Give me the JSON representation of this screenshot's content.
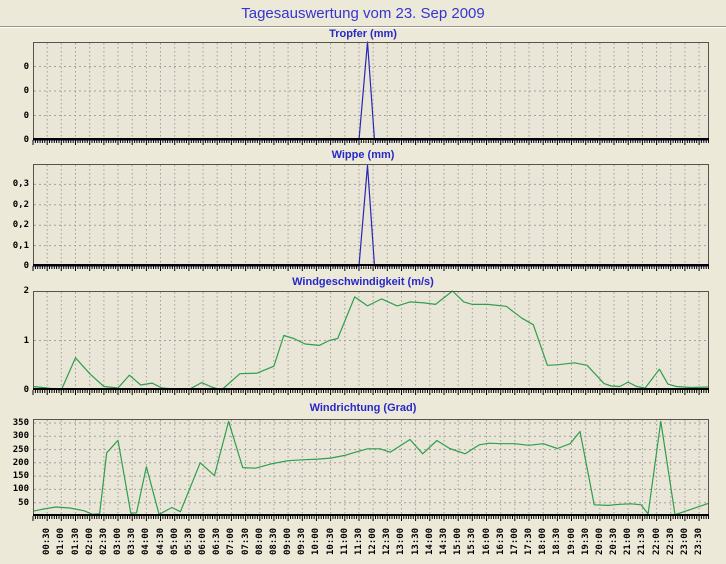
{
  "page": {
    "title": "Tagesauswertung vom 23. Sep 2009",
    "background": "#ece9d8",
    "plot_background": "#e9e6d7",
    "grid_color": "#a0a0a0",
    "axis_color": "#000000",
    "border_color": "#55534a",
    "title_color": "#3535cf",
    "chart_title_color": "#2828c8",
    "tick_label_color": "#000000"
  },
  "x_axis": {
    "domain_hours": [
      0,
      23.85
    ],
    "tick_start": 0.5,
    "tick_step": 0.5,
    "minor_tick_minutes": 5,
    "labels": [
      "00:30",
      "01:00",
      "01:30",
      "02:00",
      "02:30",
      "03:00",
      "03:30",
      "04:00",
      "04:30",
      "05:00",
      "05:30",
      "06:00",
      "06:30",
      "07:00",
      "07:30",
      "08:00",
      "08:30",
      "09:00",
      "09:30",
      "10:00",
      "10:30",
      "11:00",
      "11:30",
      "12:00",
      "12:30",
      "13:00",
      "13:30",
      "14:00",
      "14:30",
      "15:00",
      "15:30",
      "16:00",
      "16:30",
      "17:00",
      "17:30",
      "18:00",
      "18:30",
      "19:00",
      "19:30",
      "20:00",
      "20:30",
      "21:00",
      "21:30",
      "22:00",
      "22:30",
      "23:00",
      "23:30"
    ]
  },
  "chart_data": [
    {
      "type": "line",
      "title": "Tropfer (mm)",
      "line_color": "#2727b8",
      "ymin": 0,
      "ymax": 0.04,
      "yticks": [
        {
          "value": 0.03,
          "label": "0"
        },
        {
          "value": 0.02,
          "label": "0"
        },
        {
          "value": 0.01,
          "label": "0"
        },
        {
          "value": 0,
          "label": "0"
        }
      ],
      "points": [
        [
          0,
          0
        ],
        [
          11.5,
          0
        ],
        [
          11.8,
          0.04
        ],
        [
          12.05,
          0
        ],
        [
          23.85,
          0
        ]
      ]
    },
    {
      "type": "line",
      "title": "Wippe (mm)",
      "line_color": "#2727b8",
      "ymin": 0,
      "ymax": 0.375,
      "yticks": [
        {
          "value": 0.3,
          "label": "0,3"
        },
        {
          "value": 0.225,
          "label": "0,2"
        },
        {
          "value": 0.15,
          "label": "0,2"
        },
        {
          "value": 0.075,
          "label": "0,1"
        },
        {
          "value": 0,
          "label": "0"
        }
      ],
      "points": [
        [
          0,
          0
        ],
        [
          11.5,
          0
        ],
        [
          11.8,
          0.37
        ],
        [
          12.05,
          0
        ],
        [
          23.85,
          0
        ]
      ]
    },
    {
      "type": "line",
      "title": "Windgeschwindigkeit (m/s)",
      "line_color": "#2f9e4e",
      "ymin": 0,
      "ymax": 2,
      "yticks": [
        {
          "value": 2,
          "label": "2"
        },
        {
          "value": 1,
          "label": "1"
        },
        {
          "value": 0,
          "label": "0"
        }
      ],
      "points": [
        [
          0,
          0.07
        ],
        [
          0.5,
          0.04
        ],
        [
          1.0,
          0.0
        ],
        [
          1.5,
          0.65
        ],
        [
          2.0,
          0.33
        ],
        [
          2.5,
          0.07
        ],
        [
          3.0,
          0.04
        ],
        [
          3.4,
          0.3
        ],
        [
          3.8,
          0.1
        ],
        [
          4.2,
          0.14
        ],
        [
          4.55,
          0.04
        ],
        [
          5.0,
          0.02
        ],
        [
          5.5,
          0.01
        ],
        [
          5.95,
          0.15
        ],
        [
          6.3,
          0.06
        ],
        [
          6.65,
          0.0
        ],
        [
          7.3,
          0.33
        ],
        [
          7.9,
          0.34
        ],
        [
          8.5,
          0.48
        ],
        [
          8.85,
          1.1
        ],
        [
          9.2,
          1.04
        ],
        [
          9.6,
          0.93
        ],
        [
          10.1,
          0.9
        ],
        [
          10.45,
          1.0
        ],
        [
          10.75,
          1.04
        ],
        [
          11.35,
          1.88
        ],
        [
          11.8,
          1.7
        ],
        [
          12.3,
          1.84
        ],
        [
          12.85,
          1.7
        ],
        [
          13.3,
          1.78
        ],
        [
          13.8,
          1.76
        ],
        [
          14.2,
          1.73
        ],
        [
          14.8,
          2.0
        ],
        [
          15.2,
          1.78
        ],
        [
          15.5,
          1.73
        ],
        [
          16.05,
          1.73
        ],
        [
          16.7,
          1.69
        ],
        [
          17.25,
          1.45
        ],
        [
          17.65,
          1.32
        ],
        [
          18.15,
          0.5
        ],
        [
          18.5,
          0.51
        ],
        [
          19.1,
          0.55
        ],
        [
          19.55,
          0.5
        ],
        [
          20.15,
          0.13
        ],
        [
          20.4,
          0.08
        ],
        [
          20.7,
          0.07
        ],
        [
          21.0,
          0.16
        ],
        [
          21.3,
          0.07
        ],
        [
          21.6,
          0.04
        ],
        [
          22.1,
          0.42
        ],
        [
          22.4,
          0.12
        ],
        [
          22.7,
          0.07
        ],
        [
          23.2,
          0.05
        ],
        [
          23.85,
          0.06
        ]
      ]
    },
    {
      "type": "line",
      "title": "Windrichtung (Grad)",
      "line_color": "#2f9e4e",
      "ymin": 0,
      "ymax": 365,
      "yticks": [
        {
          "value": 350,
          "label": "350"
        },
        {
          "value": 300,
          "label": "300"
        },
        {
          "value": 250,
          "label": "250"
        },
        {
          "value": 200,
          "label": "200"
        },
        {
          "value": 150,
          "label": "150"
        },
        {
          "value": 100,
          "label": "100"
        },
        {
          "value": 50,
          "label": "50"
        },
        {
          "value": 0,
          "label": ""
        }
      ],
      "points": [
        [
          0,
          18
        ],
        [
          0.3,
          25
        ],
        [
          0.8,
          34
        ],
        [
          1.3,
          30
        ],
        [
          1.8,
          20
        ],
        [
          2.1,
          6
        ],
        [
          2.35,
          8
        ],
        [
          2.6,
          238
        ],
        [
          3.0,
          285
        ],
        [
          3.45,
          10
        ],
        [
          3.65,
          12
        ],
        [
          4.0,
          185
        ],
        [
          4.45,
          6
        ],
        [
          4.9,
          32
        ],
        [
          5.2,
          16
        ],
        [
          5.9,
          200
        ],
        [
          6.4,
          152
        ],
        [
          6.9,
          356
        ],
        [
          7.4,
          182
        ],
        [
          7.85,
          180
        ],
        [
          8.4,
          196
        ],
        [
          9.0,
          208
        ],
        [
          9.6,
          212
        ],
        [
          10.05,
          214
        ],
        [
          10.5,
          218
        ],
        [
          11.0,
          228
        ],
        [
          11.3,
          238
        ],
        [
          11.8,
          253
        ],
        [
          12.25,
          253
        ],
        [
          12.6,
          240
        ],
        [
          13.3,
          288
        ],
        [
          13.75,
          234
        ],
        [
          14.25,
          284
        ],
        [
          14.7,
          254
        ],
        [
          15.25,
          234
        ],
        [
          15.75,
          268
        ],
        [
          16.1,
          274
        ],
        [
          16.5,
          272
        ],
        [
          17.0,
          272
        ],
        [
          17.5,
          266
        ],
        [
          18.0,
          272
        ],
        [
          18.5,
          254
        ],
        [
          18.95,
          272
        ],
        [
          19.3,
          318
        ],
        [
          19.8,
          42
        ],
        [
          20.3,
          40
        ],
        [
          20.7,
          44
        ],
        [
          21.1,
          46
        ],
        [
          21.45,
          42
        ],
        [
          21.7,
          8
        ],
        [
          22.15,
          356
        ],
        [
          22.65,
          5
        ],
        [
          23.2,
          25
        ],
        [
          23.85,
          48
        ]
      ]
    }
  ],
  "layout_note": "four stacked line charts sharing one labeled time axis"
}
